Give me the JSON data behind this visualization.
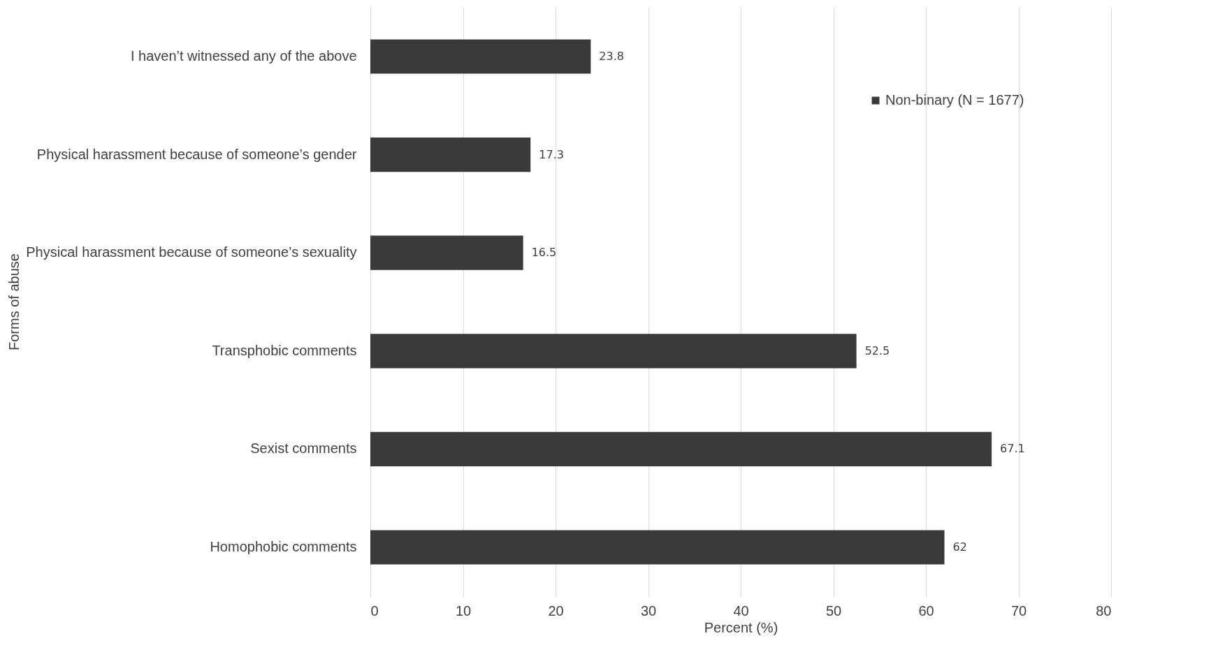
{
  "chart_data": {
    "type": "bar",
    "orientation": "horizontal",
    "xlabel": "Percent (%)",
    "ylabel": "Forms of abuse",
    "categories": [
      "I haven’t witnessed any of the above",
      "Physical harassment  because of someone’s gender",
      "Physical harassment because of someone’s sexuality",
      "Transphobic comments",
      "Sexist comments",
      "Homophobic comments"
    ],
    "series": [
      {
        "name": "Non-binary (N = 1677)",
        "color": "#3a3a3a",
        "values": [
          23.8,
          17.3,
          16.5,
          52.5,
          67.1,
          62
        ]
      }
    ],
    "xlim": [
      0,
      80
    ],
    "xticks": [
      0,
      10,
      20,
      30,
      40,
      50,
      60,
      70,
      80
    ],
    "grid": "x",
    "legend": "top right",
    "data_labels": true
  }
}
